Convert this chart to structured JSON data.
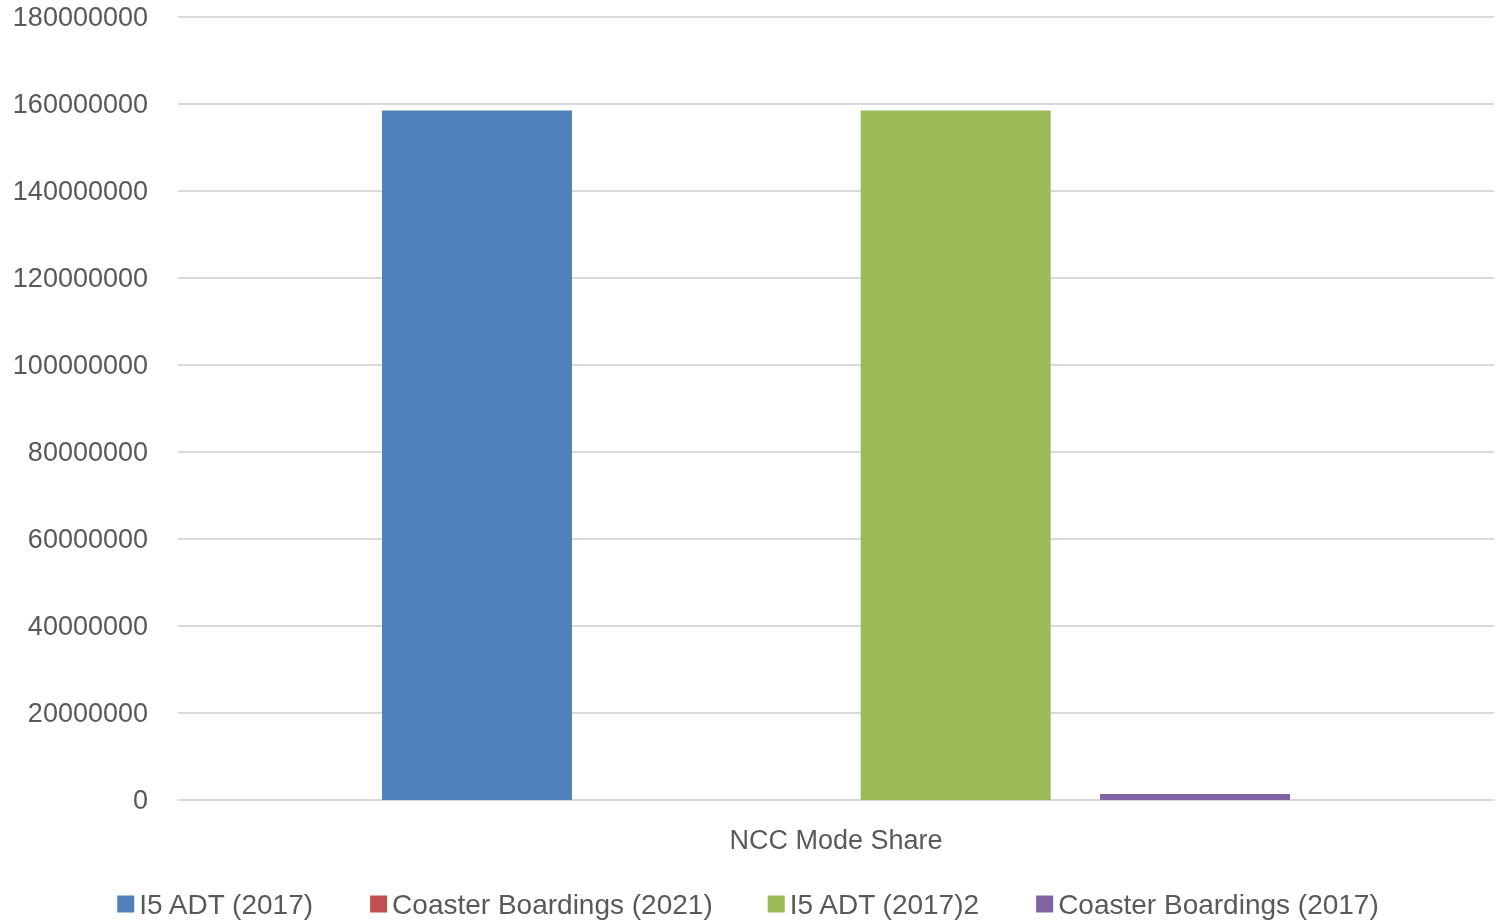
{
  "chart_data": {
    "type": "bar",
    "categories": [
      "NCC Mode Share"
    ],
    "series": [
      {
        "name": "I5 ADT (2017)",
        "color": "#4f81bd",
        "values": [
          158500000
        ]
      },
      {
        "name": "Coaster Boardings (2021)",
        "color": "#c0504d",
        "values": [
          0
        ]
      },
      {
        "name": "I5 ADT (2017)2",
        "color": "#9bbb59",
        "values": [
          158500000
        ]
      },
      {
        "name": "Coaster Boardings (2017)",
        "color": "#8064a2",
        "values": [
          1400000
        ]
      }
    ],
    "ylim": [
      0,
      180000000
    ],
    "yticks": [
      0,
      20000000,
      40000000,
      60000000,
      80000000,
      100000000,
      120000000,
      140000000,
      160000000,
      180000000
    ],
    "grid": "y",
    "legend": "bottom"
  }
}
